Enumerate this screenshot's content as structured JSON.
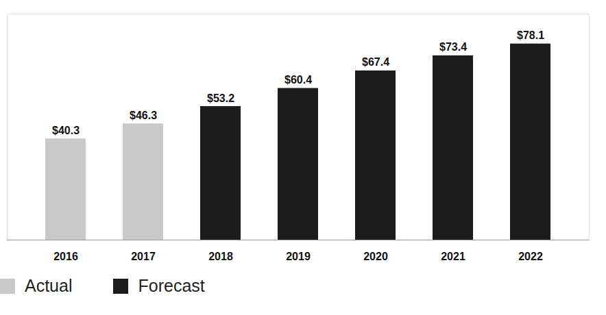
{
  "chart_data": {
    "type": "bar",
    "categories": [
      "2016",
      "2017",
      "2018",
      "2019",
      "2020",
      "2021",
      "2022"
    ],
    "series": [
      {
        "name": "Actual",
        "color": "#c9c9c9",
        "values": [
          40.3,
          46.3,
          null,
          null,
          null,
          null,
          null
        ],
        "value_labels": [
          "$40.3",
          "$46.3",
          null,
          null,
          null,
          null,
          null
        ]
      },
      {
        "name": "Forecast",
        "color": "#1c1c1c",
        "values": [
          null,
          null,
          53.2,
          60.4,
          67.4,
          73.4,
          78.1
        ],
        "value_labels": [
          null,
          null,
          "$53.2",
          "$60.4",
          "$67.4",
          "$73.4",
          "$78.1"
        ]
      }
    ],
    "ylim": [
      0,
      90
    ],
    "data_labels": true,
    "tick_labels": "x",
    "legend": "bottom-left",
    "grid": false
  }
}
